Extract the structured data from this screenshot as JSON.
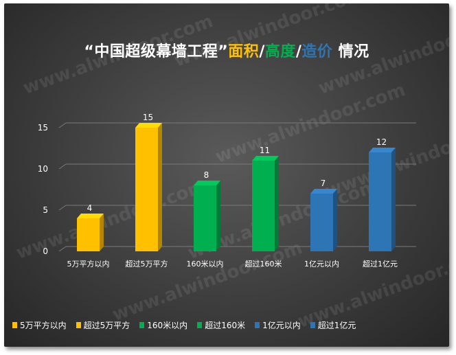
{
  "title": {
    "main": "“中国超级幕墙工程”",
    "area": "面积",
    "sep1": "/",
    "height": "高度",
    "sep2": "/",
    "cost": "造价",
    "tail": "情况"
  },
  "watermark": "www.alwindoor.com",
  "colors": {
    "yellow": "#ffc000",
    "green": "#00b050",
    "blue": "#2e75b6"
  },
  "chart_data": {
    "type": "bar",
    "categories": [
      "5万平方以内",
      "超过5万平方",
      "160米以内",
      "超过160米",
      "1亿元以内",
      "超过1亿元"
    ],
    "values": [
      4,
      15,
      8,
      11,
      7,
      12
    ],
    "bar_colors": [
      "#ffc000",
      "#ffc000",
      "#00b050",
      "#00b050",
      "#2e75b6",
      "#2e75b6"
    ],
    "yticks": [
      0,
      5,
      10,
      15
    ],
    "ylim": [
      0,
      16
    ],
    "grid": true,
    "legend_position": "bottom",
    "title": "“中国超级幕墙工程”面积/高度/造价 情况",
    "xlabel": "",
    "ylabel": ""
  }
}
